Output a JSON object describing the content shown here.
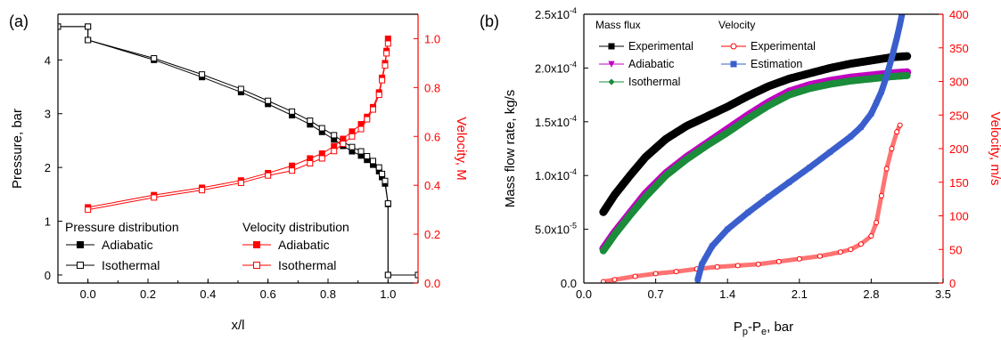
{
  "panels": [
    {
      "panel_label": "(a)",
      "chart_data": {
        "type": "line",
        "xlabel": "x/l",
        "ylabel_left": "Pressure, bar",
        "ylabel_right": "Velocity, M",
        "xlim": [
          -0.1,
          1.1
        ],
        "ylim_left": [
          -0.15,
          4.85
        ],
        "ylim_right": [
          0.0,
          1.1
        ],
        "x_ticks": [
          "0.0",
          "0.2",
          "0.4",
          "0.6",
          "0.8",
          "1.0"
        ],
        "x_tick_values": [
          0.0,
          0.2,
          0.4,
          0.6,
          0.8,
          1.0
        ],
        "y_left_ticks": [
          "0",
          "1",
          "2",
          "3",
          "4"
        ],
        "y_left_tick_values": [
          0,
          1,
          2,
          3,
          4
        ],
        "y_right_ticks": [
          "0.0",
          "0.2",
          "0.4",
          "0.6",
          "0.8",
          "1.0"
        ],
        "y_right_tick_values": [
          0.0,
          0.2,
          0.4,
          0.6,
          0.8,
          1.0
        ],
        "grid": false,
        "legend": [
          {
            "heading": "Pressure distribution",
            "entries": [
              "Adiabatic",
              "Isothermal"
            ]
          },
          {
            "heading": "Velocity distribution",
            "entries": [
              "Adiabatic",
              "Isothermal"
            ]
          }
        ],
        "series": [
          {
            "name": "Adiabatic",
            "group": "Pressure distribution",
            "axis": "left",
            "color": "#000000",
            "marker": "filled-square",
            "x": [
              -0.1,
              0.0,
              0.0,
              0.22,
              0.38,
              0.51,
              0.6,
              0.68,
              0.74,
              0.78,
              0.82,
              0.85,
              0.88,
              0.91,
              0.93,
              0.95,
              0.97,
              0.98,
              0.99,
              1.0,
              1.0,
              1.1
            ],
            "y": [
              4.62,
              4.62,
              4.37,
              4.0,
              3.68,
              3.4,
              3.18,
              2.97,
              2.8,
              2.66,
              2.52,
              2.4,
              2.3,
              2.22,
              2.14,
              2.05,
              1.93,
              1.82,
              1.7,
              1.32,
              0.0,
              0.0
            ]
          },
          {
            "name": "Isothermal",
            "group": "Pressure distribution",
            "axis": "left",
            "color": "#000000",
            "marker": "open-square",
            "x": [
              -0.1,
              0.0,
              0.0,
              0.22,
              0.38,
              0.51,
              0.6,
              0.68,
              0.74,
              0.78,
              0.82,
              0.85,
              0.88,
              0.91,
              0.93,
              0.95,
              0.97,
              0.98,
              0.99,
              1.0,
              1.0,
              1.1
            ],
            "y": [
              4.62,
              4.62,
              4.37,
              4.03,
              3.73,
              3.46,
              3.24,
              3.04,
              2.87,
              2.73,
              2.6,
              2.48,
              2.38,
              2.3,
              2.21,
              2.12,
              2.0,
              1.88,
              1.75,
              1.33,
              0.0,
              0.0
            ]
          },
          {
            "name": "Adiabatic",
            "group": "Velocity distribution",
            "axis": "right",
            "color": "#ff0000",
            "marker": "filled-square",
            "x": [
              0.0,
              0.22,
              0.38,
              0.51,
              0.6,
              0.68,
              0.74,
              0.78,
              0.82,
              0.85,
              0.88,
              0.91,
              0.93,
              0.95,
              0.97,
              0.98,
              0.99,
              0.995,
              1.0
            ],
            "y": [
              0.31,
              0.36,
              0.39,
              0.42,
              0.45,
              0.48,
              0.51,
              0.53,
              0.56,
              0.59,
              0.62,
              0.65,
              0.68,
              0.72,
              0.78,
              0.84,
              0.9,
              0.95,
              1.0
            ]
          },
          {
            "name": "Isothermal",
            "group": "Velocity distribution",
            "axis": "right",
            "color": "#ff0000",
            "marker": "open-square",
            "x": [
              0.0,
              0.22,
              0.38,
              0.51,
              0.6,
              0.68,
              0.74,
              0.78,
              0.82,
              0.85,
              0.88,
              0.91,
              0.93,
              0.95,
              0.97,
              0.98,
              0.99,
              0.995,
              1.0
            ],
            "y": [
              0.3,
              0.35,
              0.38,
              0.41,
              0.44,
              0.46,
              0.49,
              0.51,
              0.54,
              0.57,
              0.6,
              0.63,
              0.67,
              0.71,
              0.77,
              0.83,
              0.89,
              0.94,
              0.98
            ]
          }
        ]
      }
    },
    {
      "panel_label": "(b)",
      "chart_data": {
        "type": "scatter",
        "xlabel_main": "P",
        "xlabel_sub1": "p",
        "xlabel_mid": "-P",
        "xlabel_sub2": "e",
        "xlabel_tail": ", bar",
        "ylabel_left": "Mass flow rate, kg/s",
        "ylabel_right": "Velocity, m/s",
        "xlim": [
          0.0,
          3.5
        ],
        "ylim_left": [
          0.0,
          0.00025
        ],
        "ylim_right": [
          0,
          400
        ],
        "x_ticks": [
          "0.0",
          "0.7",
          "1.4",
          "2.1",
          "2.8",
          "3.5"
        ],
        "x_tick_values": [
          0.0,
          0.7,
          1.4,
          2.1,
          2.8,
          3.5
        ],
        "y_left_ticks": [
          {
            "mant": "0.0",
            "exp": ""
          },
          {
            "mant": "5.0x10",
            "exp": "-5"
          },
          {
            "mant": "1.0x10",
            "exp": "-4"
          },
          {
            "mant": "1.5x10",
            "exp": "-4"
          },
          {
            "mant": "2.0x10",
            "exp": "-4"
          },
          {
            "mant": "2.5x10",
            "exp": "-4"
          }
        ],
        "y_left_tick_values": [
          0.0,
          5e-05,
          0.0001,
          0.00015,
          0.0002,
          0.00025
        ],
        "y_right_ticks": [
          "0",
          "50",
          "100",
          "150",
          "200",
          "250",
          "300",
          "350",
          "400"
        ],
        "y_right_tick_values": [
          0,
          50,
          100,
          150,
          200,
          250,
          300,
          350,
          400
        ],
        "grid": false,
        "legend": [
          {
            "heading": "Mass flux",
            "entries": [
              "Experimental",
              "Adiabatic",
              "Isothermal"
            ]
          },
          {
            "heading": "Velocity",
            "entries": [
              "Experimental",
              "Estimation"
            ]
          }
        ],
        "series": [
          {
            "name": "Experimental",
            "group": "Mass flux",
            "axis": "left",
            "color": "#000000",
            "marker": "filled-square",
            "x": [
              0.19,
              0.3,
              0.45,
              0.6,
              0.8,
              1.0,
              1.2,
              1.4,
              1.6,
              1.8,
              2.0,
              2.2,
              2.4,
              2.6,
              2.8,
              3.0,
              3.15
            ],
            "y": [
              6.6e-05,
              8.2e-05,
              0.0001,
              0.000117,
              0.000134,
              0.000146,
              0.000155,
              0.000164,
              0.000174,
              0.000183,
              0.00019,
              0.000195,
              0.0002,
              0.000204,
              0.000207,
              0.00021,
              0.000211
            ]
          },
          {
            "name": "Adiabatic",
            "group": "Mass flux",
            "axis": "left",
            "color": "#c000c0",
            "marker": "triangle-down",
            "x": [
              0.19,
              0.3,
              0.45,
              0.6,
              0.8,
              1.0,
              1.2,
              1.4,
              1.6,
              1.8,
              2.0,
              2.2,
              2.4,
              2.6,
              2.8,
              3.0,
              3.15
            ],
            "y": [
              3.2e-05,
              4.7e-05,
              6.5e-05,
              8.3e-05,
              0.000102,
              0.000117,
              0.00013,
              0.000143,
              0.000156,
              0.000168,
              0.000178,
              0.000184,
              0.000188,
              0.000191,
              0.000193,
              0.000195,
              0.000196
            ]
          },
          {
            "name": "Isothermal",
            "group": "Mass flux",
            "axis": "left",
            "color": "#1a8c3a",
            "marker": "filled-diamond",
            "x": [
              0.19,
              0.3,
              0.45,
              0.6,
              0.8,
              1.0,
              1.2,
              1.4,
              1.6,
              1.8,
              2.0,
              2.2,
              2.4,
              2.6,
              2.8,
              3.0,
              3.15
            ],
            "y": [
              3e-05,
              4.5e-05,
              6.3e-05,
              8e-05,
              0.0001,
              0.000115,
              0.000128,
              0.00014,
              0.000153,
              0.000165,
              0.000175,
              0.000181,
              0.000185,
              0.000188,
              0.00019,
              0.000192,
              0.000193
            ]
          },
          {
            "name": "Experimental",
            "group": "Velocity",
            "axis": "right",
            "color": "#ff0000",
            "marker": "open-circle",
            "x": [
              0.19,
              0.3,
              0.5,
              0.7,
              0.9,
              1.1,
              1.3,
              1.5,
              1.7,
              1.9,
              2.1,
              2.3,
              2.5,
              2.6,
              2.7,
              2.8,
              2.85,
              2.9,
              2.95,
              3.0,
              3.05,
              3.08
            ],
            "y": [
              2,
              5,
              10,
              14,
              17,
              21,
              24,
              26,
              28,
              32,
              36,
              40,
              46,
              50,
              58,
              70,
              90,
              130,
              170,
              200,
              225,
              235
            ]
          },
          {
            "name": "Estimation",
            "group": "Velocity",
            "axis": "right",
            "color": "#3a5fcd",
            "marker": "filled-square",
            "x": [
              1.11,
              1.15,
              1.25,
              1.4,
              1.6,
              1.8,
              2.0,
              2.2,
              2.4,
              2.6,
              2.7,
              2.8,
              2.85,
              2.9,
              2.95,
              3.0,
              3.05,
              3.08,
              3.1
            ],
            "y": [
              5,
              28,
              55,
              80,
              105,
              128,
              150,
              172,
              195,
              218,
              232,
              252,
              268,
              285,
              308,
              335,
              365,
              385,
              400
            ]
          }
        ]
      }
    }
  ]
}
